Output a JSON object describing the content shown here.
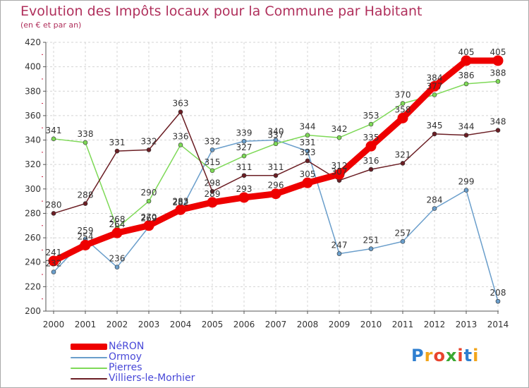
{
  "header": {
    "title": "Evolution des Impôts locaux pour la Commune par Habitant",
    "subtitle": "(en € et par an)"
  },
  "chart_data": {
    "type": "line",
    "title": "Evolution des Impôts locaux pour la Commune par Habitant",
    "subtitle": "(en € et par an)",
    "xlabel": "",
    "ylabel": "",
    "x": [
      "2000",
      "2001",
      "2002",
      "2003",
      "2004",
      "2005",
      "2006",
      "2007",
      "2008",
      "2009",
      "2010",
      "2011",
      "2012",
      "2013",
      "2014"
    ],
    "ylim": [
      200,
      420
    ],
    "yticks": [
      200,
      220,
      240,
      260,
      280,
      300,
      320,
      340,
      360,
      380,
      400,
      420
    ],
    "grid": true,
    "legend_position": "bottom-left",
    "series": [
      {
        "name": "NéRON",
        "color": "#ee0000",
        "values": [
          241,
          254,
          264,
          270,
          283,
          289,
          293,
          296,
          305,
          312,
          335,
          358,
          384,
          405,
          405
        ]
      },
      {
        "name": "Ormoy",
        "color": "#6a9ecb",
        "values": [
          232,
          259,
          236,
          269,
          282,
          332,
          339,
          340,
          331,
          247,
          251,
          257,
          284,
          299,
          208
        ]
      },
      {
        "name": "Pierres",
        "color": "#7ed957",
        "values": [
          341,
          338,
          268,
          290,
          336,
          315,
          327,
          337,
          344,
          342,
          353,
          370,
          377,
          386,
          388
        ]
      },
      {
        "name": "Villiers-le-Morhier",
        "color": "#6b1e24",
        "values": [
          280,
          288,
          331,
          332,
          363,
          298,
          311,
          311,
          323,
          307,
          316,
          321,
          345,
          344,
          348
        ]
      }
    ]
  },
  "logo": {
    "letters": [
      "P",
      "r",
      "o",
      "x",
      "i",
      "t",
      "i"
    ],
    "colors": [
      "#2f7fd0",
      "#f2a51a",
      "#e8442e",
      "#3aa832",
      "#e8442e",
      "#2f7fd0",
      "#f2a51a"
    ]
  }
}
